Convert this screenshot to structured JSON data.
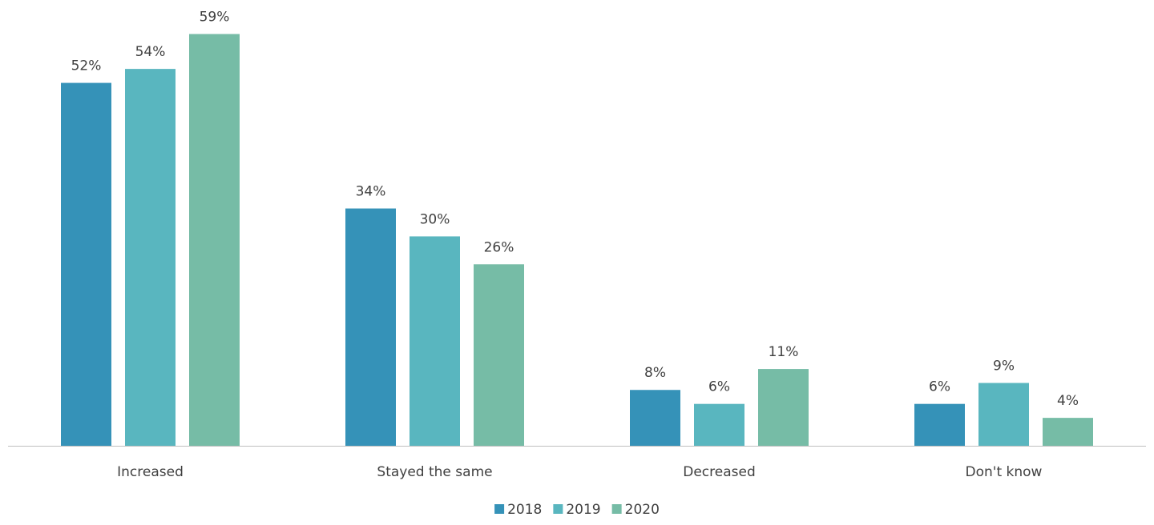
{
  "chart_data": {
    "type": "bar",
    "title": "",
    "xlabel": "",
    "ylabel": "",
    "ylim": [
      0,
      60
    ],
    "grid": false,
    "legend_position": "bottom",
    "value_suffix": "%",
    "categories": [
      "Increased",
      "Stayed the same",
      "Decreased",
      "Don't know"
    ],
    "series": [
      {
        "name": "2018",
        "color": "#3592b8",
        "values": [
          52,
          34,
          8,
          6
        ]
      },
      {
        "name": "2019",
        "color": "#59b6bf",
        "values": [
          54,
          30,
          6,
          9
        ]
      },
      {
        "name": "2020",
        "color": "#76bca6",
        "values": [
          59,
          26,
          11,
          4
        ]
      }
    ]
  }
}
